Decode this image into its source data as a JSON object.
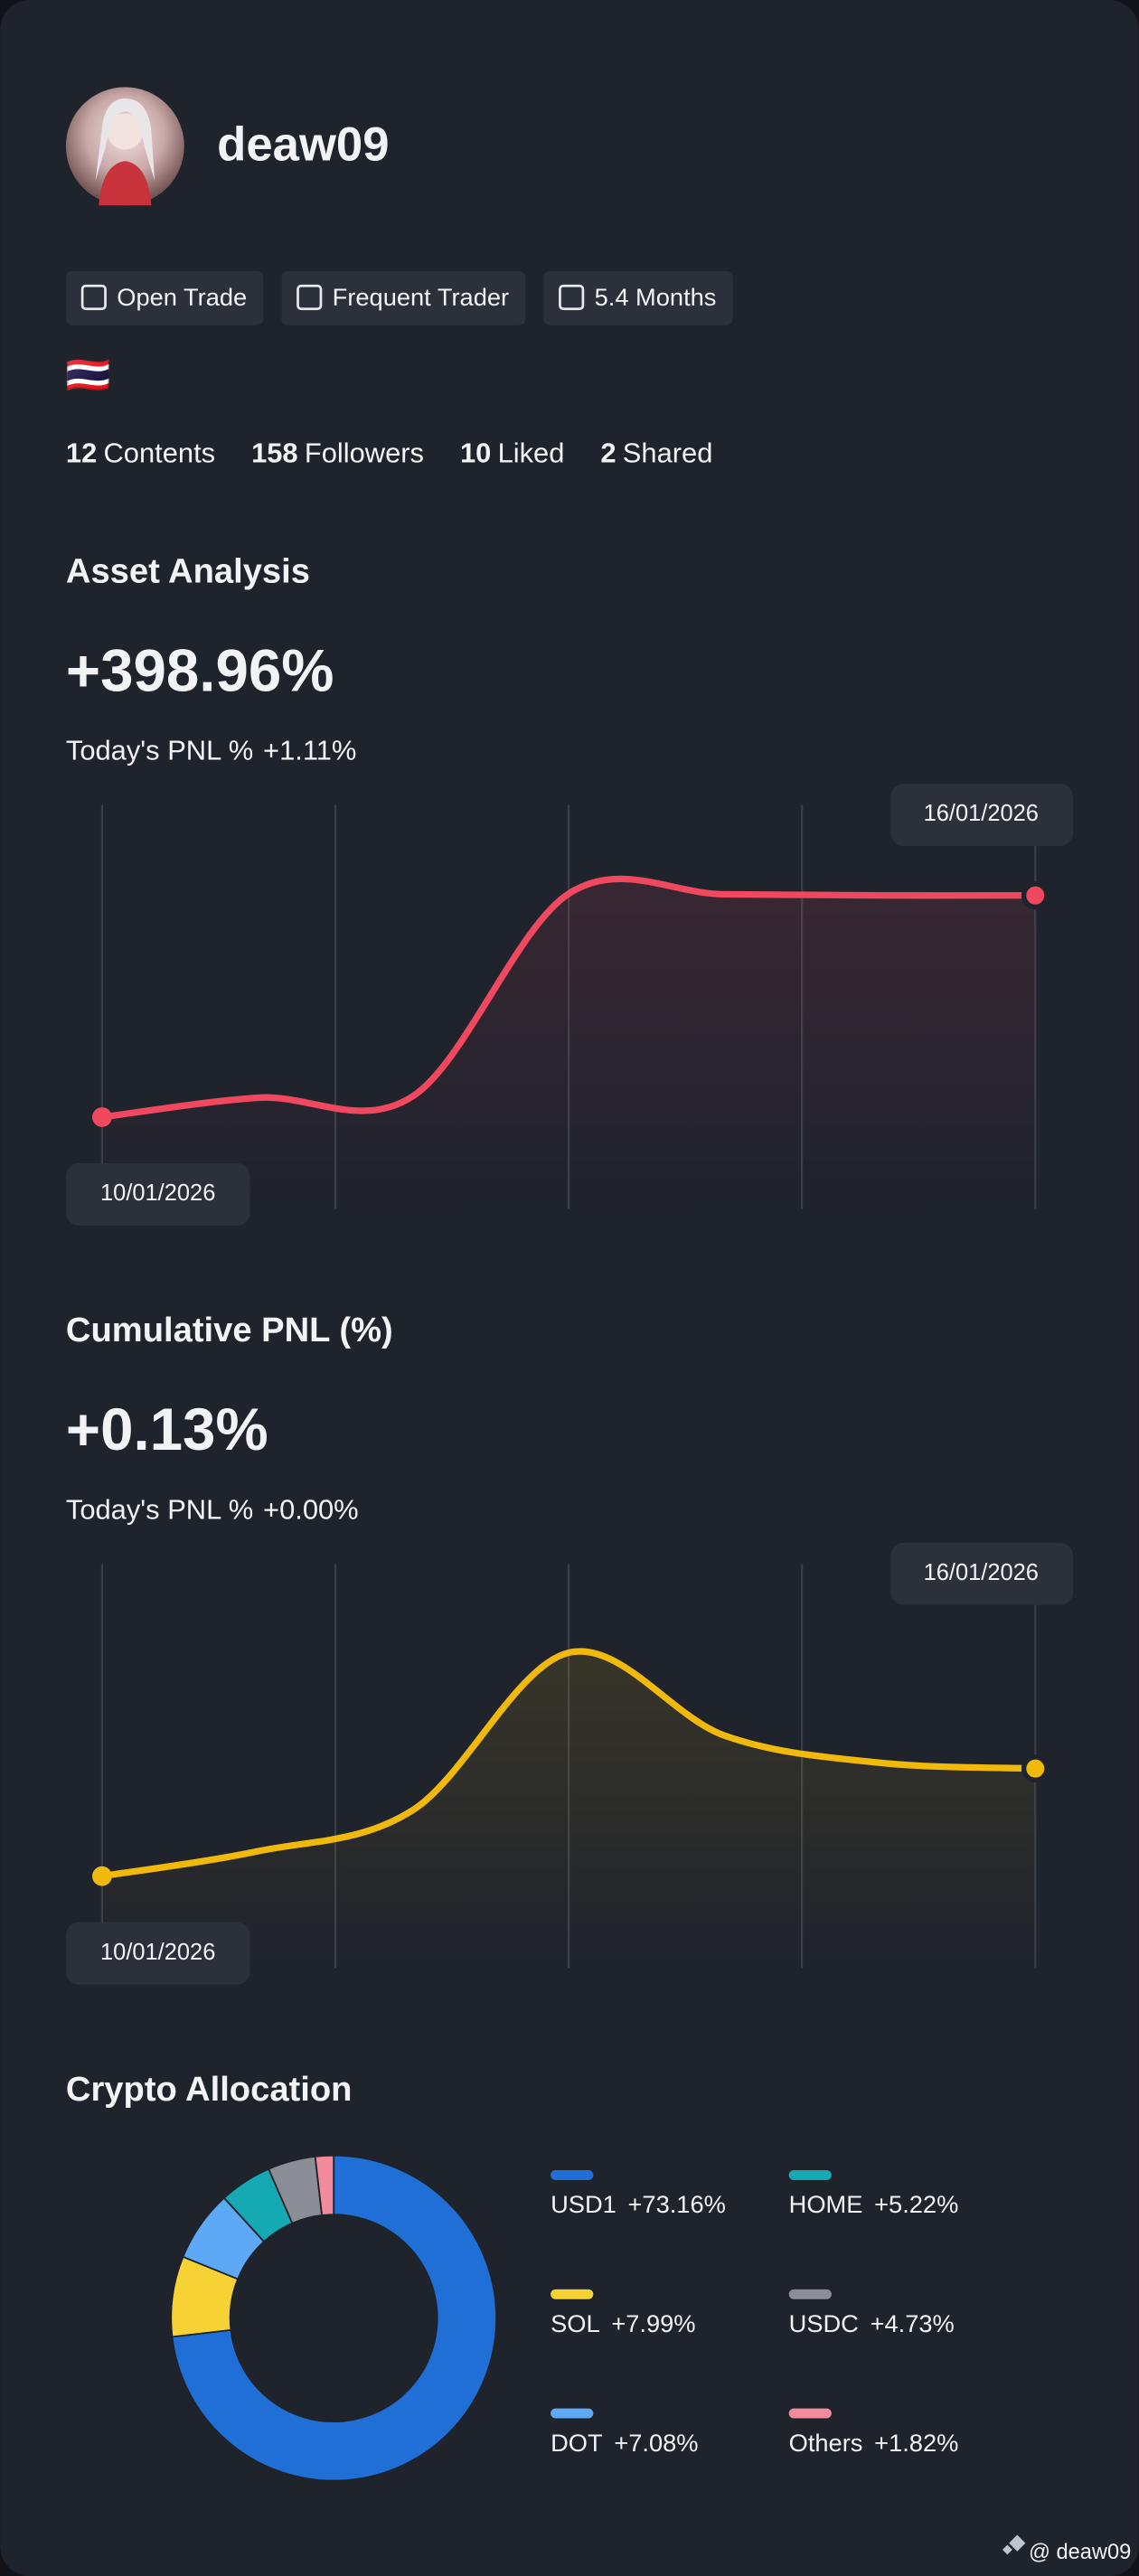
{
  "profile": {
    "name": "deaw09",
    "badges": [
      "Open Trade",
      "Frequent Trader",
      "5.4 Months"
    ],
    "flag": "🇹🇭",
    "stats": [
      {
        "value": 12,
        "label": "Contents"
      },
      {
        "value": 158,
        "label": "Followers"
      },
      {
        "value": 10,
        "label": "Liked"
      },
      {
        "value": 2,
        "label": "Shared"
      }
    ]
  },
  "chart_data": [
    {
      "type": "line",
      "title": "Asset Analysis",
      "headline": "+398.96%",
      "today_label": "Today's PNL %",
      "today_value": "+1.11%",
      "categories": [
        "10/01/2026",
        null,
        null,
        null,
        null,
        null,
        "16/01/2026"
      ],
      "series": [
        {
          "color": "#f0485e",
          "values": [
            0,
            35,
            38,
            402,
            401,
            399,
            398.96
          ]
        }
      ]
    },
    {
      "type": "line",
      "title": "Cumulative PNL (%)",
      "headline": "+0.13%",
      "today_label": "Today's PNL %",
      "today_value": "+0.00%",
      "categories": [
        "10/01/2026",
        null,
        null,
        null,
        null,
        null,
        "16/01/2026"
      ],
      "series": [
        {
          "color": "#f0b90b",
          "values": [
            0,
            0.03,
            0.08,
            0.27,
            0.17,
            0.137,
            0.13
          ]
        }
      ]
    },
    {
      "type": "pie",
      "title": "Crypto Allocation",
      "categories": [
        "USD1",
        "SOL",
        "DOT",
        "HOME",
        "USDC",
        "Others"
      ],
      "values": [
        73.16,
        7.99,
        7.08,
        5.22,
        4.73,
        1.82
      ],
      "value_labels": [
        "+73.16%",
        "+7.99%",
        "+7.08%",
        "+5.22%",
        "+4.73%",
        "+1.82%"
      ],
      "colors": [
        "#1f6fd6",
        "#f7d234",
        "#5ea9f6",
        "#15a9b4",
        "#8b8e94",
        "#f28b9c"
      ]
    }
  ],
  "footer": "@ deaw09"
}
